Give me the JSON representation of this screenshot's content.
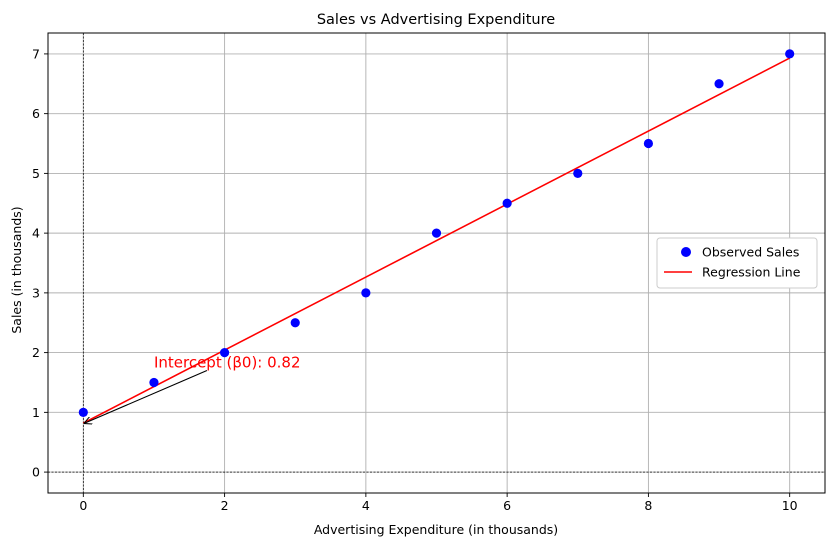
{
  "chart_data": {
    "type": "scatter",
    "title": "Sales vs Advertising Expenditure",
    "xlabel": "Advertising Expenditure (in thousands)",
    "ylabel": "Sales (in thousands)",
    "xlim": [
      -0.5,
      10.5
    ],
    "ylim": [
      -0.35,
      7.35
    ],
    "xticks": [
      0,
      2,
      4,
      6,
      8,
      10
    ],
    "yticks": [
      0,
      1,
      2,
      3,
      4,
      5,
      6,
      7
    ],
    "grid": true,
    "legend_placement": "center-right",
    "series": [
      {
        "name": "Observed Sales",
        "kind": "scatter",
        "color": "#0000ff",
        "x": [
          0,
          1,
          2,
          3,
          4,
          5,
          6,
          7,
          8,
          9,
          10
        ],
        "y": [
          1,
          1.5,
          2,
          2.5,
          3,
          4,
          4.5,
          5,
          5.5,
          6.5,
          7
        ]
      },
      {
        "name": "Regression Line",
        "kind": "line",
        "color": "#ff0000",
        "x": [
          0,
          10
        ],
        "y": [
          0.82,
          6.93
        ]
      }
    ],
    "reference_lines": {
      "x": 0,
      "y": 0,
      "color": "#000000",
      "style": "dashed"
    },
    "annotation": {
      "text": "Intercept (β0): 0.82",
      "color": "#ff0000",
      "text_at": [
        1.0,
        1.75
      ],
      "arrow_from": [
        1.75,
        1.7
      ],
      "arrow_to": [
        0.02,
        0.82
      ]
    }
  }
}
